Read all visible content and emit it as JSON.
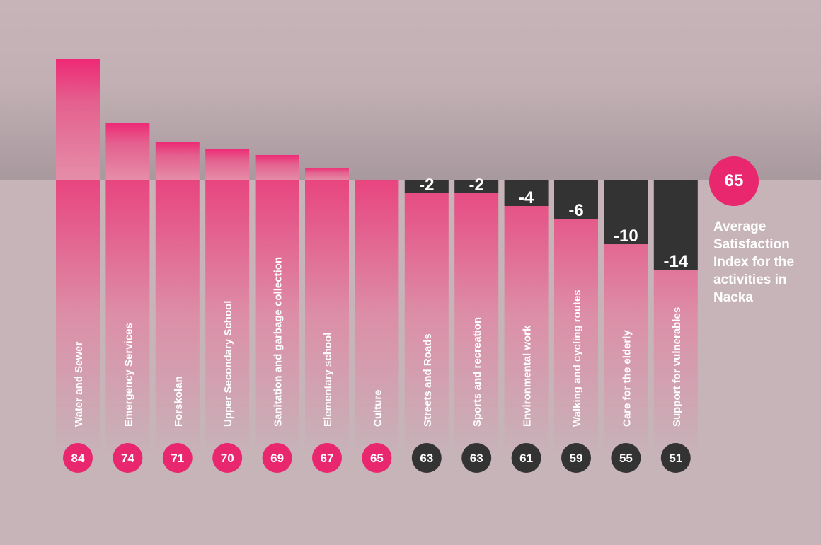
{
  "chart_data": {
    "type": "bar",
    "title": "",
    "xlabel": "",
    "ylabel": "",
    "baseline": 65,
    "ylim": [
      25,
      87
    ],
    "categories": [
      "Water and Sewer",
      "Emergency Services",
      "Forskolan",
      "Upper Secondary School",
      "Sanitation and garbage collection",
      "Elementary school",
      "Culture",
      "Streets and Roads",
      "Sports and recreation",
      "Environmental work",
      "Walking and cycling routes",
      "Care for the elderly",
      "Support for vulnerables"
    ],
    "values": [
      84,
      74,
      71,
      70,
      69,
      67,
      65,
      63,
      63,
      61,
      59,
      55,
      51
    ],
    "value_labels": [
      "84",
      "74",
      "71",
      "70",
      "69",
      "67",
      "65",
      "63",
      "63",
      "61",
      "59",
      "55",
      "51"
    ],
    "deviation_labels": [
      "",
      "",
      "",
      "",
      "",
      "",
      "",
      "-2",
      "-2",
      "-4",
      "-6",
      "-10",
      "-14"
    ],
    "average": {
      "value": "65",
      "caption": "Average Satisfaction Index for the activities in Nacka"
    },
    "colors": {
      "above": "#e8276f",
      "below": "#333333",
      "label": "#ffffff"
    }
  }
}
